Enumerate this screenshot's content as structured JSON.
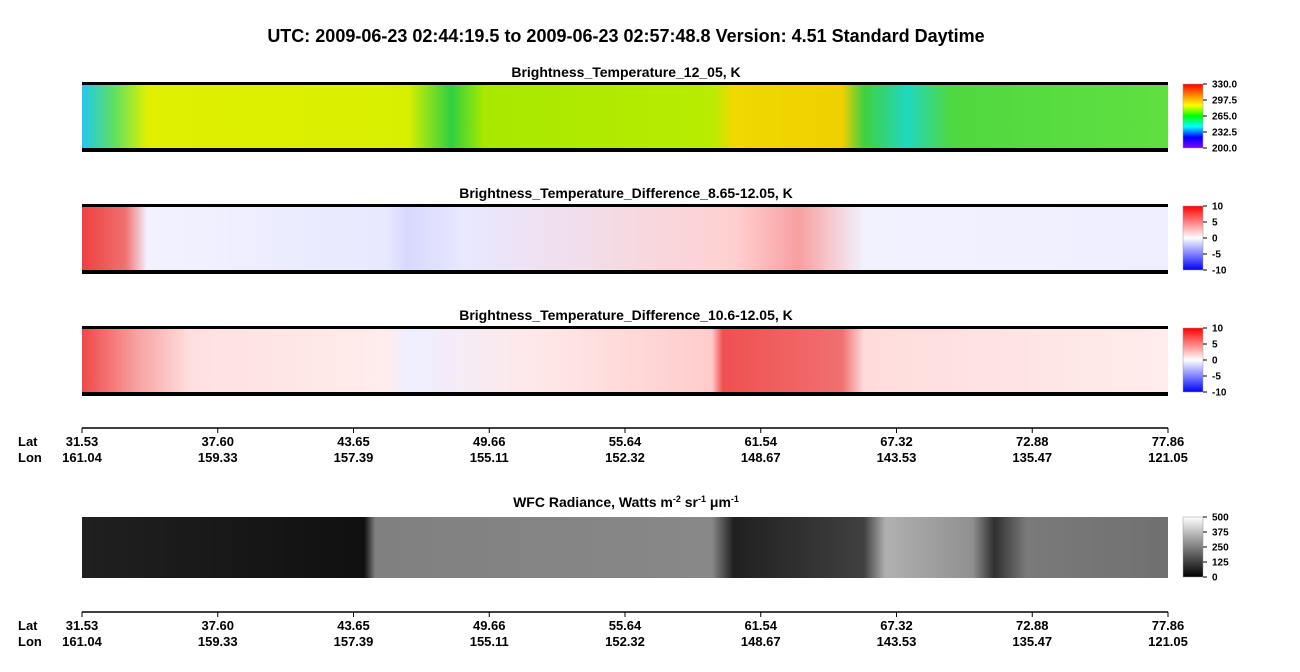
{
  "title": "UTC:  2009-06-23   02:44:19.5  to  2009-06-23   02:57:48.8    Version: 4.51  Standard Daytime",
  "panels": [
    {
      "title": [
        "Brightness_Temperature_12_05, K"
      ],
      "colorbar": {
        "lim": [
          200,
          330
        ],
        "colormap": [
          "#8000ff",
          "#0000ff",
          "#00ffff",
          "#00ff00",
          "#ffff00",
          "#ff8000",
          "#ff0000"
        ],
        "ticks": [
          {
            "value": 330,
            "label": "330.0"
          },
          {
            "value": 297.5,
            "label": "297.5"
          },
          {
            "value": 265,
            "label": "265.0"
          },
          {
            "value": 232.5,
            "label": "232.5"
          },
          {
            "value": 200,
            "label": "200.0"
          }
        ]
      }
    },
    {
      "title": [
        "Brightness_Temperature_Difference_8.65-12.05, K"
      ],
      "colorbar": {
        "lim": [
          -10,
          10
        ],
        "colormap": [
          "#0000ff",
          "#ffffff",
          "#ff0000"
        ],
        "ticks": [
          10,
          5,
          0,
          -5,
          -10
        ]
      }
    },
    {
      "title": [
        "Brightness_Temperature_Difference_10.6-12.05, K"
      ],
      "colorbar": {
        "lim": [
          -10,
          10
        ],
        "colormap": [
          "#0000ff",
          "#ffffff",
          "#ff0000"
        ],
        "ticks": [
          10,
          5,
          0,
          -5,
          -10
        ]
      }
    },
    {
      "title": [
        "WFC Radiance, Watts m",
        "-2",
        " sr",
        "-1",
        " μm",
        "-1"
      ],
      "colorbar": {
        "lim": [
          0,
          500
        ],
        "colormap": [
          "#000000",
          "#ffffff"
        ],
        "ticks": [
          500,
          375,
          250,
          125,
          0
        ]
      }
    }
  ],
  "axis": {
    "lat_label": "Lat",
    "lon_label": "Lon",
    "lat": [
      "31.53",
      "37.60",
      "43.65",
      "49.66",
      "55.64",
      "61.54",
      "67.32",
      "72.88",
      "77.86"
    ],
    "lon": [
      "161.04",
      "159.33",
      "157.39",
      "155.11",
      "152.32",
      "148.67",
      "143.53",
      "135.47",
      "121.05"
    ]
  }
}
